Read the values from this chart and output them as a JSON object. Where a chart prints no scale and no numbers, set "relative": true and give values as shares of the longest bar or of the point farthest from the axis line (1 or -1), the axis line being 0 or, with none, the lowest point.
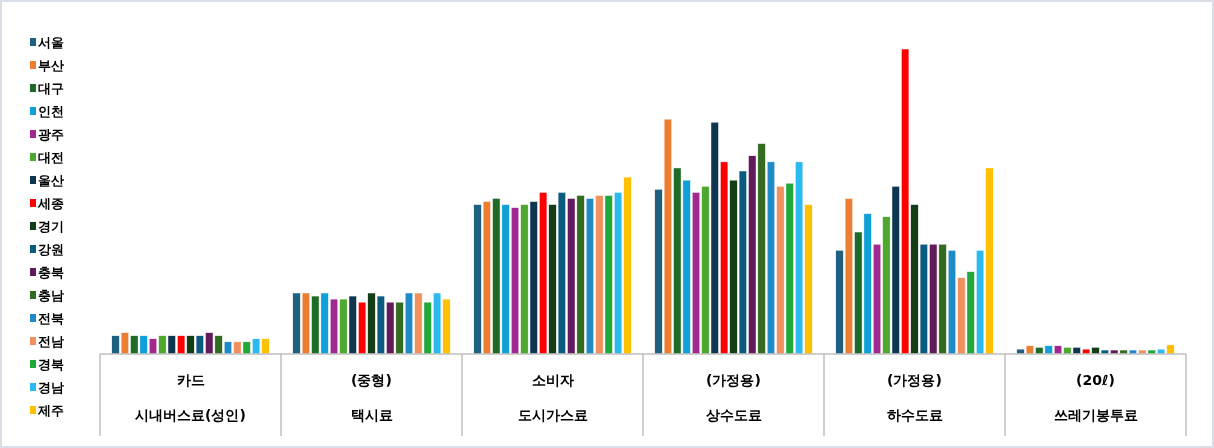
{
  "chart_data": {
    "type": "bar",
    "relative": true,
    "legend": "left",
    "categories": [
      "카드\n시내버스료(성인)",
      "(중형)\n택시료",
      "소비자\n도시가스료",
      "(가정용)\n상수도료",
      "(가정용)\n하수도료",
      "(20ℓ)\n쓰레기봉투료"
    ],
    "series": [
      {
        "name": "서울",
        "color": "#1f5f7f",
        "values": [
          0.06,
          0.2,
          0.49,
          0.54,
          0.34,
          0.016
        ]
      },
      {
        "name": "부산",
        "color": "#ed7d31",
        "values": [
          0.07,
          0.2,
          0.5,
          0.77,
          0.51,
          0.027
        ]
      },
      {
        "name": "대구",
        "color": "#1e6b27",
        "values": [
          0.06,
          0.19,
          0.51,
          0.61,
          0.4,
          0.022
        ]
      },
      {
        "name": "인천",
        "color": "#0fa0d8",
        "values": [
          0.06,
          0.2,
          0.49,
          0.57,
          0.46,
          0.027
        ]
      },
      {
        "name": "광주",
        "color": "#a0288f",
        "values": [
          0.05,
          0.18,
          0.48,
          0.53,
          0.36,
          0.027
        ]
      },
      {
        "name": "대전",
        "color": "#4ea72e",
        "values": [
          0.06,
          0.18,
          0.49,
          0.55,
          0.45,
          0.022
        ]
      },
      {
        "name": "울산",
        "color": "#0e3650",
        "values": [
          0.06,
          0.19,
          0.5,
          0.76,
          0.55,
          0.022
        ]
      },
      {
        "name": "세종",
        "color": "#ff0000",
        "values": [
          0.06,
          0.17,
          0.53,
          0.63,
          1,
          0.016
        ]
      },
      {
        "name": "경기",
        "color": "#133d15",
        "values": [
          0.06,
          0.2,
          0.49,
          0.57,
          0.49,
          0.022
        ]
      },
      {
        "name": "강원",
        "color": "#0b5a80",
        "values": [
          0.06,
          0.19,
          0.53,
          0.6,
          0.36,
          0.013
        ]
      },
      {
        "name": "충북",
        "color": "#621a5a",
        "values": [
          0.07,
          0.17,
          0.51,
          0.65,
          0.36,
          0.013
        ]
      },
      {
        "name": "충남",
        "color": "#336b21",
        "values": [
          0.06,
          0.17,
          0.52,
          0.69,
          0.36,
          0.013
        ]
      },
      {
        "name": "전북",
        "color": "#1f8ac8",
        "values": [
          0.04,
          0.2,
          0.51,
          0.63,
          0.34,
          0.013
        ]
      },
      {
        "name": "전남",
        "color": "#f0905e",
        "values": [
          0.04,
          0.2,
          0.52,
          0.55,
          0.25,
          0.013
        ]
      },
      {
        "name": "경북",
        "color": "#22a83a",
        "values": [
          0.04,
          0.17,
          0.52,
          0.56,
          0.27,
          0.013
        ]
      },
      {
        "name": "경남",
        "color": "#2cb9ef",
        "values": [
          0.05,
          0.2,
          0.53,
          0.63,
          0.34,
          0.016
        ]
      },
      {
        "name": "제주",
        "color": "#ffc000",
        "values": [
          0.05,
          0.18,
          0.58,
          0.49,
          0.61,
          0.03
        ]
      }
    ]
  }
}
